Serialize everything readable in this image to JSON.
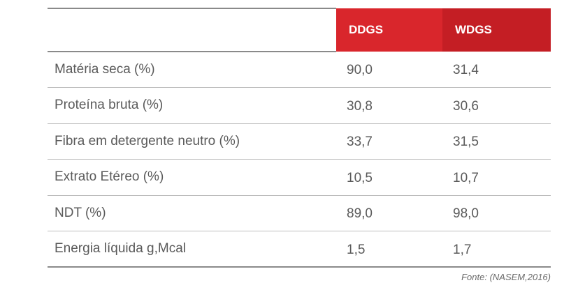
{
  "table": {
    "headers": {
      "label": "",
      "ddgs": "DDGS",
      "wdgs": "WDGS"
    },
    "rows": [
      {
        "label": "Matéria seca (%)",
        "ddgs": "90,0",
        "wdgs": "31,4"
      },
      {
        "label": "Proteína bruta (%)",
        "ddgs": "30,8",
        "wdgs": "30,6"
      },
      {
        "label": "Fibra em detergente neutro (%)",
        "ddgs": "33,7",
        "wdgs": "31,5"
      },
      {
        "label": "Extrato Etéreo (%)",
        "ddgs": "10,5",
        "wdgs": "10,7"
      },
      {
        "label": "NDT (%)",
        "ddgs": "89,0",
        "wdgs": "98,0"
      },
      {
        "label": "Energia líquida g,Mcal",
        "ddgs": "1,5",
        "wdgs": "1,7"
      }
    ],
    "source": "Fonte: (NASEM,2016)"
  },
  "colors": {
    "header_red": "#d9262c",
    "header_red_dark": "#c41e24",
    "text": "#5a5a5a"
  }
}
